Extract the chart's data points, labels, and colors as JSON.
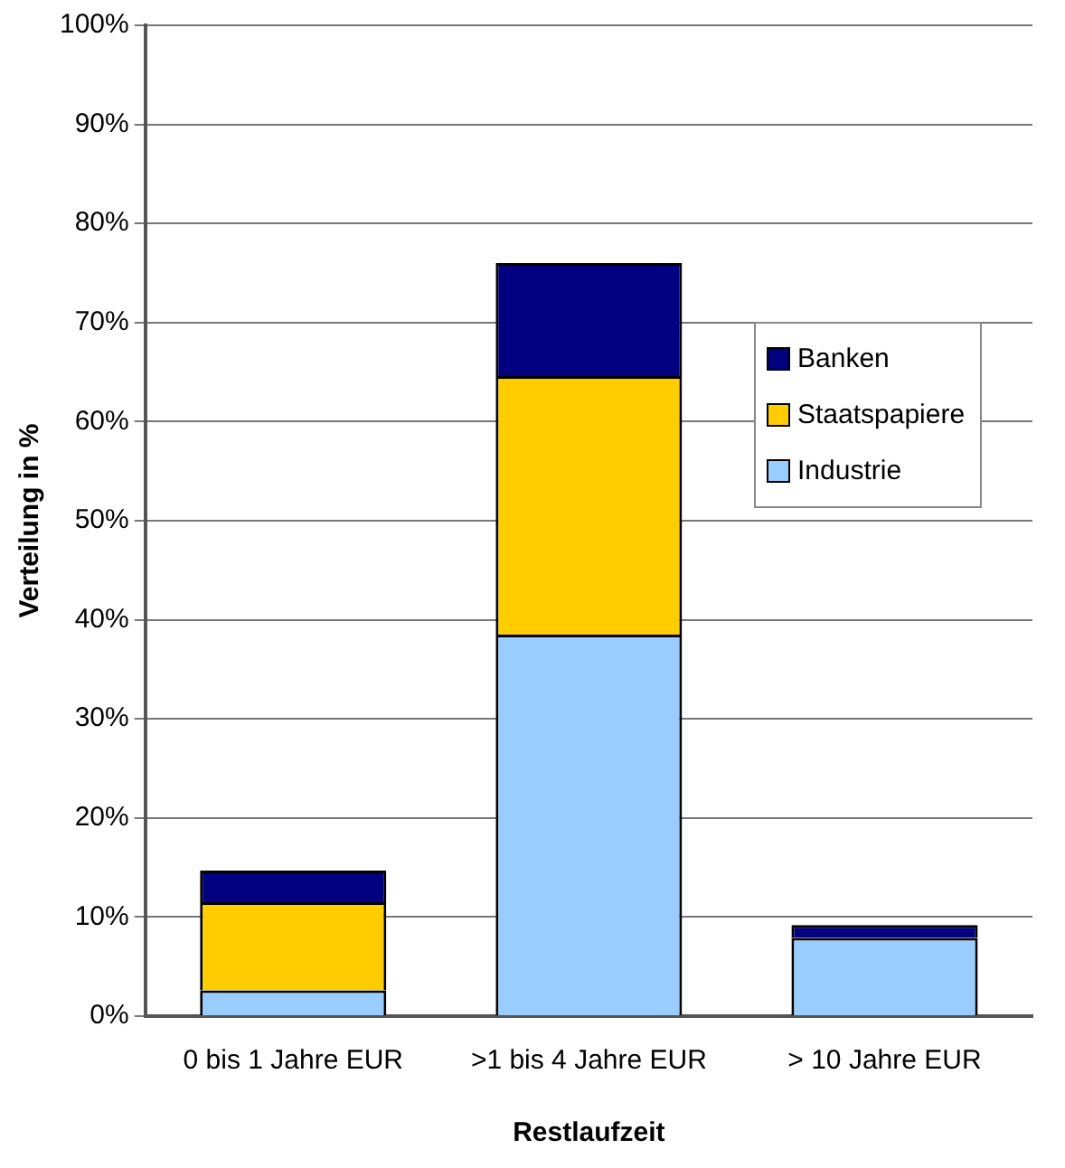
{
  "chart_data": {
    "type": "bar",
    "xlabel": "Restlaufzeit",
    "ylabel": "Verteilung in %",
    "categories": [
      "0 bis 1 Jahre EUR",
      ">1 bis 4 Jahre EUR",
      "> 10 Jahre EUR"
    ],
    "stacked": true,
    "series": [
      {
        "name": "Industrie",
        "color": "#99ccff",
        "values": [
          2.6,
          38.5,
          7.9
        ]
      },
      {
        "name": "Staatspapiere",
        "color": "#ffcc00",
        "values": [
          8.9,
          26.1,
          0
        ]
      },
      {
        "name": "Banken",
        "color": "#000080",
        "values": [
          3.2,
          11.4,
          1.3
        ]
      }
    ],
    "ylim": [
      0,
      100
    ],
    "yticks": [
      {
        "value": 0,
        "label": "0%"
      },
      {
        "value": 10,
        "label": "10%"
      },
      {
        "value": 20,
        "label": "20%"
      },
      {
        "value": 30,
        "label": "30%"
      },
      {
        "value": 40,
        "label": "40%"
      },
      {
        "value": 50,
        "label": "50%"
      },
      {
        "value": 60,
        "label": "60%"
      },
      {
        "value": 70,
        "label": "70%"
      },
      {
        "value": 80,
        "label": "80%"
      },
      {
        "value": 90,
        "label": "90%"
      },
      {
        "value": 100,
        "label": "100%"
      }
    ],
    "grid": "y",
    "legend": "right"
  }
}
